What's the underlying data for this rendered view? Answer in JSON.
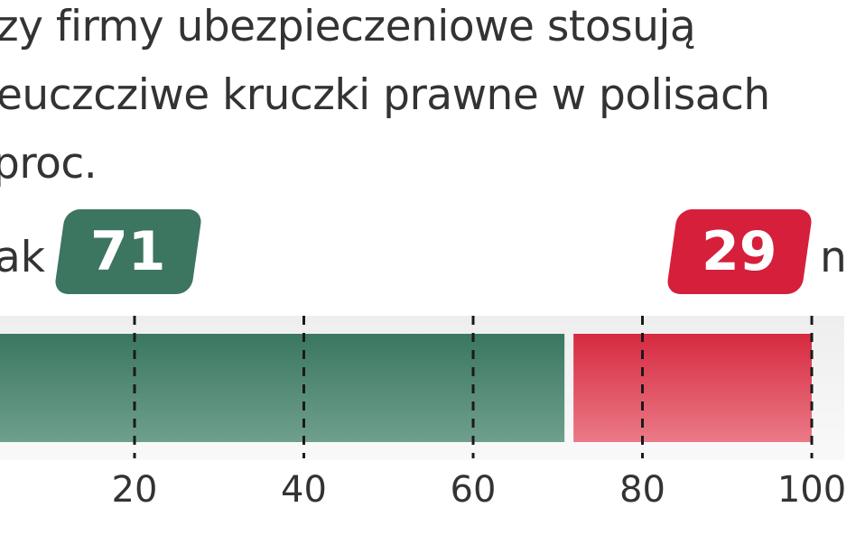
{
  "title_lines": [
    "zy firmy ubezpieczeniowe stosują",
    "eucz­czi­we kruczki prawne w polisach",
    "proc."
  ],
  "colors": {
    "yes": "#3c7560",
    "no": "#d61f3b",
    "background": "#ffffff"
  },
  "chart_data": {
    "type": "bar",
    "orientation": "horizontal-stacked",
    "title": "zy firmy ubezpieczeniowe stosują eucz­czi­we kruczki prawne w polisach proc.",
    "series": [
      {
        "name": "ak",
        "value": 71
      },
      {
        "name": "n",
        "value": 29
      }
    ],
    "badges": [
      "71",
      "29"
    ],
    "xlim": [
      0,
      100
    ],
    "x_ticks": [
      20,
      40,
      60,
      80,
      100
    ],
    "x_tick_labels": [
      "20",
      "40",
      "60",
      "80",
      "100"
    ],
    "grid": "dashed-vertical"
  }
}
